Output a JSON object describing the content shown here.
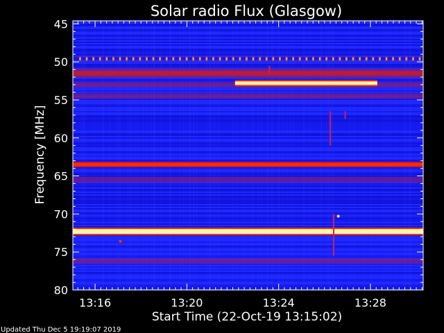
{
  "chart_data": {
    "type": "heatmap",
    "title": "Solar radio Flux (Glasgow)",
    "xlabel": "Start Time (22-Oct-19 13:15:02)",
    "ylabel": "Frequency [MHz]",
    "footer": "Updated Thu Dec  5 19:19:07 2019",
    "x_tick_labels": [
      "13:16",
      "13:20",
      "13:24",
      "13:28"
    ],
    "x_tick_minutes": [
      16,
      20,
      24,
      28
    ],
    "x_range_minutes": [
      15.03,
      30.3
    ],
    "y_tick_labels": [
      "45",
      "50",
      "55",
      "60",
      "65",
      "70",
      "75",
      "80"
    ],
    "y_tick_values": [
      45,
      50,
      55,
      60,
      65,
      70,
      75,
      80
    ],
    "y_range_mhz": [
      44.6,
      80
    ],
    "y_inverted": true,
    "colormap": {
      "background": "#1a20ff",
      "low": "#0a0abe",
      "mid": "#7a1f8c",
      "high": "#ff2a00",
      "peak": "#fff6b0"
    },
    "features": [
      {
        "name": "50 MHz periodic interference",
        "freq_mhz": 49.6,
        "start_min": 15.3,
        "end_min": 30.2,
        "intensity": "medium",
        "dotted": true
      },
      {
        "name": "band 51.5 MHz",
        "freq_mhz": 51.5,
        "start_min": 15.03,
        "end_min": 30.3,
        "intensity": "medium"
      },
      {
        "name": "band 53 MHz",
        "freq_mhz": 53.0,
        "start_min": 15.03,
        "end_min": 30.3,
        "intensity": "low"
      },
      {
        "name": "band 54.5 MHz",
        "freq_mhz": 54.5,
        "start_min": 15.03,
        "end_min": 30.3,
        "intensity": "low"
      },
      {
        "name": "burst 52.8 MHz",
        "freq_mhz": 52.8,
        "start_min": 22.1,
        "end_min": 28.3,
        "intensity": "peak"
      },
      {
        "name": "line 63.5 MHz",
        "freq_mhz": 63.5,
        "start_min": 15.03,
        "end_min": 30.3,
        "intensity": "high"
      },
      {
        "name": "band 65.5 MHz",
        "freq_mhz": 65.5,
        "start_min": 15.03,
        "end_min": 30.3,
        "intensity": "low"
      },
      {
        "name": "strong line 72.3 MHz",
        "freq_mhz": 72.3,
        "start_min": 15.03,
        "end_min": 30.3,
        "intensity": "peak"
      },
      {
        "name": "band 76.2 MHz",
        "freq_mhz": 76.2,
        "start_min": 15.03,
        "end_min": 30.3,
        "intensity": "low"
      }
    ]
  }
}
